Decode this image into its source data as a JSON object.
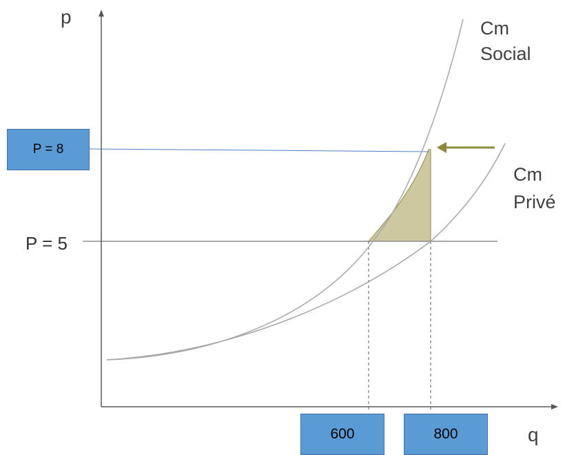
{
  "axes": {
    "y_label": "p",
    "x_label": "q"
  },
  "curves": {
    "social_line1": "Cm",
    "social_line2": "Social",
    "private_line1": "Cm",
    "private_line2": "Privé"
  },
  "price_levels": {
    "p8_label": "P = 8",
    "p5_label": "P = 5"
  },
  "quantities": {
    "q600_label": "600",
    "q800_label": "800"
  },
  "colors": {
    "shaded_area": "#cdc8a0",
    "shaded_edge": "#8c8a4a",
    "arrow": "#8c8a3c",
    "p8_line": "#4f7fc8",
    "label_box_fill": "#5b9bd5",
    "label_box_border": "#41719c",
    "curve": "#a6a6a6",
    "axis": "#595959"
  }
}
